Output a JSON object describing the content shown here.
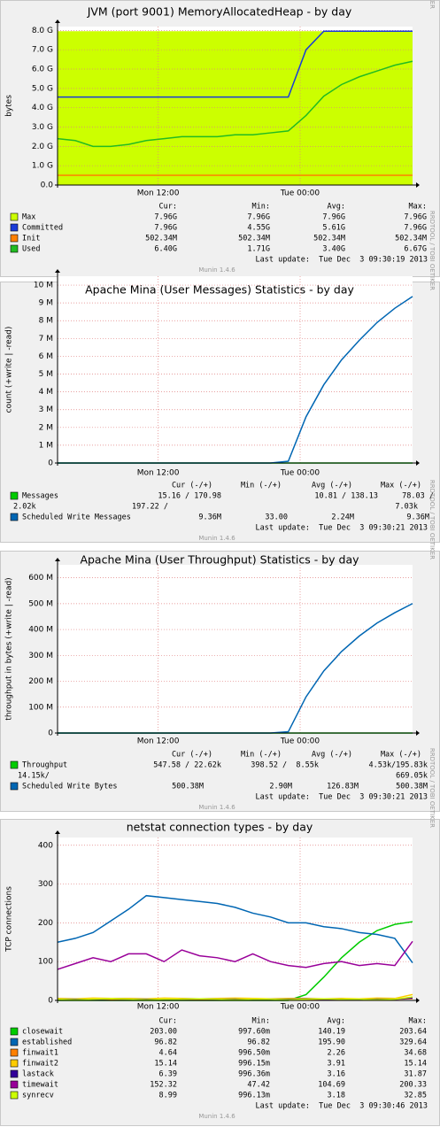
{
  "chart_data": [
    {
      "type": "line",
      "title": "JVM (port 9001) MemoryAllocatedHeap - by day",
      "ylabel": "bytes",
      "x": [
        3.5,
        5,
        6.5,
        8,
        9.5,
        11,
        12.5,
        14,
        15.5,
        17,
        18.5,
        20,
        21.5,
        23,
        24.5,
        26,
        27.5,
        29,
        30.5,
        32,
        33.5
      ],
      "xlim": [
        3.5,
        33.5
      ],
      "xticks": [
        {
          "value": 12,
          "label": "Mon 12:00"
        },
        {
          "value": 24,
          "label": "Tue 00:00"
        }
      ],
      "ylim": [
        0,
        8.2
      ],
      "yticks": [
        {
          "value": 0,
          "label": "0.0"
        },
        {
          "value": 1,
          "label": "1.0 G"
        },
        {
          "value": 2,
          "label": "2.0 G"
        },
        {
          "value": 3,
          "label": "3.0 G"
        },
        {
          "value": 4,
          "label": "4.0 G"
        },
        {
          "value": 5,
          "label": "5.0 G"
        },
        {
          "value": 6,
          "label": "6.0 G"
        },
        {
          "value": 7,
          "label": "7.0 G"
        },
        {
          "value": 8,
          "label": "8.0 G"
        }
      ],
      "grid": true,
      "series": [
        {
          "name": "Max",
          "color": "#ccff00",
          "area": true,
          "values": [
            7.96,
            7.96,
            7.96,
            7.96,
            7.96,
            7.96,
            7.96,
            7.96,
            7.96,
            7.96,
            7.96,
            7.96,
            7.96,
            7.96,
            7.96,
            7.96,
            7.96,
            7.96,
            7.96,
            7.96,
            7.96
          ]
        },
        {
          "name": "Committed",
          "color": "#1a3cd8",
          "values": [
            4.55,
            4.55,
            4.55,
            4.55,
            4.55,
            4.55,
            4.55,
            4.55,
            4.55,
            4.55,
            4.55,
            4.55,
            4.55,
            4.55,
            7.0,
            7.96,
            7.96,
            7.96,
            7.96,
            7.96,
            7.96
          ]
        },
        {
          "name": "Init",
          "color": "#ff8000",
          "values": [
            0.50234,
            0.50234,
            0.50234,
            0.50234,
            0.50234,
            0.50234,
            0.50234,
            0.50234,
            0.50234,
            0.50234,
            0.50234,
            0.50234,
            0.50234,
            0.50234,
            0.50234,
            0.50234,
            0.50234,
            0.50234,
            0.50234,
            0.50234,
            0.50234
          ]
        },
        {
          "name": "Used",
          "color": "#22bb22",
          "values": [
            2.4,
            2.3,
            2.0,
            2.0,
            2.1,
            2.3,
            2.4,
            2.5,
            2.5,
            2.5,
            2.6,
            2.6,
            2.7,
            2.8,
            3.6,
            4.6,
            5.2,
            5.6,
            5.9,
            6.2,
            6.4
          ]
        }
      ],
      "legend_header": [
        "Cur:",
        "Min:",
        "Avg:",
        "Max:"
      ],
      "legend": [
        {
          "cells": [
            "7.96G",
            "7.96G",
            "7.96G",
            "7.96G"
          ]
        },
        {
          "cells": [
            "7.96G",
            "4.55G",
            "5.61G",
            "7.96G"
          ]
        },
        {
          "cells": [
            "502.34M",
            "502.34M",
            "502.34M",
            "502.34M"
          ]
        },
        {
          "cells": [
            "6.40G",
            "1.71G",
            "3.40G",
            "6.67G"
          ]
        }
      ],
      "last_update": "Last update:  Tue Dec  3 09:30:19 2013",
      "footer": "Munin 1.4.6",
      "side_label": "RRDTOOL / TOBI OETIKER"
    },
    {
      "type": "line",
      "title": "Apache Mina (User Messages) Statistics - by day",
      "ylabel": "count (+write | -read)",
      "x": [
        3.5,
        5,
        6.5,
        8,
        9.5,
        11,
        12.5,
        14,
        15.5,
        17,
        18.5,
        20,
        21.5,
        23,
        24.5,
        26,
        27.5,
        29,
        30.5,
        32,
        33.5
      ],
      "xlim": [
        3.5,
        33.5
      ],
      "xticks": [
        {
          "value": 12,
          "label": "Mon 12:00"
        },
        {
          "value": 24,
          "label": "Tue 00:00"
        }
      ],
      "ylim": [
        0,
        10.5
      ],
      "yticks": [
        0,
        {
          "value": 1,
          "label": "1 M"
        },
        {
          "value": 2,
          "label": "2 M"
        },
        {
          "value": 3,
          "label": "3 M"
        },
        {
          "value": 4,
          "label": "4 M"
        },
        {
          "value": 5,
          "label": "5 M"
        },
        {
          "value": 6,
          "label": "6 M"
        },
        {
          "value": 7,
          "label": "7 M"
        },
        {
          "value": 8,
          "label": "8 M"
        },
        {
          "value": 9,
          "label": "9 M"
        },
        {
          "value": 10,
          "label": "10 M"
        }
      ],
      "grid": true,
      "series": [
        {
          "name": "Messages",
          "color": "#00cc00",
          "values": [
            0,
            0,
            0,
            0,
            0,
            0,
            0,
            0,
            0,
            0,
            0,
            0,
            0,
            0,
            0,
            0,
            0,
            0,
            0,
            0,
            0
          ]
        },
        {
          "name": "Scheduled Write Messages",
          "color": "#0066b3",
          "values": [
            0,
            0,
            0,
            0,
            0,
            0,
            0,
            0,
            0,
            0,
            0,
            0,
            0,
            0.1,
            2.6,
            4.4,
            5.8,
            6.9,
            7.9,
            8.7,
            9.36
          ]
        }
      ],
      "legend_header": [
        "Cur (-/+)",
        "Min (-/+)",
        "Avg (-/+)",
        "Max (-/+)"
      ],
      "legend": [
        {
          "cells": [
            "15.16 / 170.98",
            "10.81 / 138.13",
            "78.03 /"
          ],
          "wrap": [
            "2.02k",
            "197.22 /",
            "7.03k"
          ]
        },
        {
          "cells": [
            "9.36M",
            "33.00",
            "2.24M",
            "9.36M"
          ]
        }
      ],
      "last_update": "Last update:  Tue Dec  3 09:30:21 2013",
      "footer": "Munin 1.4.6",
      "side_label": "RRDTOOL / TOBI OETIKER"
    },
    {
      "type": "line",
      "title": "Apache Mina (User Throughput) Statistics - by day",
      "ylabel": "throughput in bytes (+write | -read)",
      "x": [
        3.5,
        5,
        6.5,
        8,
        9.5,
        11,
        12.5,
        14,
        15.5,
        17,
        18.5,
        20,
        21.5,
        23,
        24.5,
        26,
        27.5,
        29,
        30.5,
        32,
        33.5
      ],
      "xlim": [
        3.5,
        33.5
      ],
      "xticks": [
        {
          "value": 12,
          "label": "Mon 12:00"
        },
        {
          "value": 24,
          "label": "Tue 00:00"
        }
      ],
      "ylim": [
        0,
        650
      ],
      "yticks": [
        0,
        {
          "value": 100,
          "label": "100 M"
        },
        {
          "value": 200,
          "label": "200 M"
        },
        {
          "value": 300,
          "label": "300 M"
        },
        {
          "value": 400,
          "label": "400 M"
        },
        {
          "value": 500,
          "label": "500 M"
        },
        {
          "value": 600,
          "label": "600 M"
        }
      ],
      "grid": true,
      "series": [
        {
          "name": "Throughput",
          "color": "#00cc00",
          "values": [
            0,
            0,
            0,
            0,
            0,
            0,
            0,
            0,
            0,
            0,
            0,
            0,
            0,
            0,
            0,
            0,
            0,
            0,
            0,
            0,
            0
          ]
        },
        {
          "name": "Scheduled Write Bytes",
          "color": "#0066b3",
          "values": [
            0,
            0,
            0,
            0,
            0,
            0,
            0,
            0,
            0,
            0,
            0,
            0,
            0,
            5,
            140,
            240,
            315,
            375,
            425,
            465,
            500.38
          ]
        }
      ],
      "legend_header": [
        "Cur (-/+)",
        "Min (-/+)",
        "Avg (-/+)",
        "Max (-/+)"
      ],
      "legend": [
        {
          "cells": [
            "547.58 / 22.62k",
            "398.52 /  8.55k",
            "4.53k/195.83k"
          ],
          "wrap": [
            "14.15k/",
            "669.05k"
          ]
        },
        {
          "cells": [
            "500.38M",
            "2.90M",
            "126.83M",
            "500.38M"
          ]
        }
      ],
      "last_update": "Last update:  Tue Dec  3 09:30:21 2013",
      "footer": "Munin 1.4.6",
      "side_label": "RRDTOOL / TOBI OETIKER"
    },
    {
      "type": "line",
      "title": "netstat connection types - by day",
      "ylabel": "TCP connections",
      "x": [
        3.5,
        5,
        6.5,
        8,
        9.5,
        11,
        12.5,
        14,
        15.5,
        17,
        18.5,
        20,
        21.5,
        23,
        24.5,
        26,
        27.5,
        29,
        30.5,
        32,
        33.5
      ],
      "xlim": [
        3.5,
        33.5
      ],
      "xticks": [
        {
          "value": 12,
          "label": "Mon 12:00"
        },
        {
          "value": 24,
          "label": "Tue 00:00"
        }
      ],
      "ylim": [
        0,
        420
      ],
      "yticks": [
        0,
        100,
        200,
        300,
        400
      ],
      "grid": true,
      "series": [
        {
          "name": "closewait",
          "color": "#00cc00",
          "values": [
            0,
            0,
            0,
            0,
            0,
            0,
            0,
            0,
            0,
            0,
            0,
            0,
            0,
            0,
            15,
            60,
            110,
            150,
            180,
            196,
            203
          ]
        },
        {
          "name": "established",
          "color": "#0066b3",
          "values": [
            150,
            160,
            175,
            205,
            235,
            270,
            265,
            260,
            255,
            250,
            240,
            225,
            215,
            200,
            200,
            190,
            185,
            175,
            170,
            160,
            96.82
          ]
        },
        {
          "name": "finwait1",
          "color": "#ff8000",
          "values": [
            2,
            2,
            3,
            2,
            3,
            4,
            2,
            2,
            3,
            2,
            2,
            3,
            2,
            2,
            2,
            3,
            2,
            2,
            2,
            3,
            4.64
          ]
        },
        {
          "name": "finwait2",
          "color": "#ffcc00",
          "values": [
            5,
            4,
            6,
            5,
            5,
            4,
            6,
            5,
            4,
            5,
            6,
            5,
            4,
            5,
            5,
            4,
            5,
            4,
            6,
            5,
            15.14
          ]
        },
        {
          "name": "lastack",
          "color": "#330099",
          "values": [
            3,
            3,
            2,
            4,
            3,
            3,
            2,
            3,
            4,
            3,
            3,
            2,
            3,
            3,
            4,
            3,
            3,
            2,
            3,
            3,
            6.39
          ]
        },
        {
          "name": "timewait",
          "color": "#990099",
          "values": [
            80,
            95,
            110,
            100,
            120,
            120,
            100,
            130,
            115,
            110,
            100,
            120,
            100,
            90,
            85,
            95,
            100,
            90,
            95,
            90,
            152.32
          ]
        },
        {
          "name": "synrecv",
          "color": "#ccff00",
          "values": [
            3,
            2,
            3,
            4,
            3,
            2,
            3,
            3,
            4,
            3,
            2,
            3,
            3,
            2,
            3,
            4,
            3,
            3,
            2,
            3,
            8.99
          ]
        }
      ],
      "legend_header": [
        "Cur:",
        "Min:",
        "Avg:",
        "Max:"
      ],
      "legend": [
        {
          "cells": [
            "203.00",
            "997.60m",
            "140.19",
            "203.64"
          ]
        },
        {
          "cells": [
            "96.82",
            "96.82",
            "195.90",
            "329.64"
          ]
        },
        {
          "cells": [
            "4.64",
            "996.50m",
            "2.26",
            "34.68"
          ]
        },
        {
          "cells": [
            "15.14",
            "996.15m",
            "3.91",
            "15.14"
          ]
        },
        {
          "cells": [
            "6.39",
            "996.36m",
            "3.16",
            "31.87"
          ]
        },
        {
          "cells": [
            "152.32",
            "47.42",
            "104.69",
            "200.33"
          ]
        },
        {
          "cells": [
            "8.99",
            "996.13m",
            "3.18",
            "32.85"
          ]
        }
      ],
      "last_update": "Last update:  Tue Dec  3 09:30:46 2013",
      "footer": "Munin 1.4.6",
      "side_label": "RRDTOOL / TOBI OETIKER"
    }
  ]
}
